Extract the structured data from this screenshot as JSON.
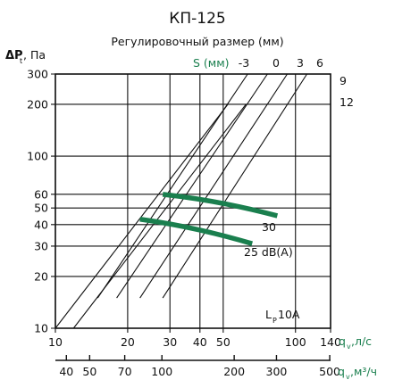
{
  "chart_data": {
    "type": "line",
    "title": "КП-125",
    "subtitle": "Регулировочный размер (мм)",
    "ylabel": "ΔP",
    "ylabel_sub": "t",
    "ylabel_unit": ", Па",
    "xlabel_ls": "q",
    "xlabel_ls_sub": "v",
    "xlabel_ls_unit": ",л/с",
    "xlabel_m3h": "q",
    "xlabel_m3h_sub": "v",
    "xlabel_m3h_unit": ",м³/ч",
    "y_scale": "log",
    "x_scale": "log",
    "ylim": [
      10,
      300
    ],
    "xlim_ls": [
      10,
      140
    ],
    "xlim_m3h": [
      36,
      504
    ],
    "grid": true,
    "y_ticks": [
      10,
      20,
      30,
      40,
      50,
      60,
      100,
      200,
      300
    ],
    "x_ticks_ls": [
      10,
      20,
      30,
      40,
      50,
      100,
      140
    ],
    "x_ticks_m3h": [
      40,
      50,
      70,
      100,
      200,
      300,
      500
    ],
    "s_label": "S (мм)",
    "s_top_labels": [
      "-3",
      "0",
      "3",
      "6"
    ],
    "s_right_labels": [
      "9",
      "12"
    ],
    "s_lines": [
      {
        "s": "12",
        "x": [
          10.0,
          52.3
        ],
        "y": [
          10,
          200
        ]
      },
      {
        "s": "9",
        "x": [
          11.9,
          62.2
        ],
        "y": [
          10,
          200
        ]
      },
      {
        "s": "6",
        "x": [
          15.0,
          63.2
        ],
        "y": [
          15,
          300
        ]
      },
      {
        "s": "3",
        "x": [
          18.0,
          76.4
        ],
        "y": [
          15,
          300
        ]
      },
      {
        "s": "0",
        "x": [
          22.5,
          92.4
        ],
        "y": [
          15,
          300
        ]
      },
      {
        "s": "-3",
        "x": [
          28.0,
          111.6
        ],
        "y": [
          15,
          300
        ]
      }
    ],
    "noise_lines": [
      {
        "label": "30",
        "x": [
          28.0,
          84.0
        ],
        "y": [
          60,
          45
        ]
      },
      {
        "label": "25 dB(A)",
        "x": [
          22.5,
          66.0
        ],
        "y": [
          43,
          31
        ]
      }
    ],
    "noise_color": "#1a7f4e",
    "annotation_main": "L",
    "annotation_sub": "P",
    "annotation_tail": "10A"
  }
}
